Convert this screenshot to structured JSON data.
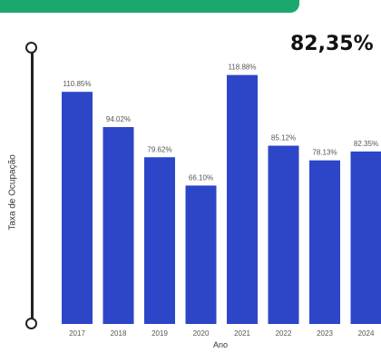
{
  "highlight_value": "82,35%",
  "chart_data": {
    "type": "bar",
    "xlabel": "Ano",
    "ylabel": "Taxa de Ocupação",
    "categories": [
      "2017",
      "2018",
      "2019",
      "2020",
      "2021",
      "2022",
      "2023",
      "2024"
    ],
    "values": [
      110.85,
      94.02,
      79.62,
      66.1,
      118.88,
      85.12,
      78.13,
      82.35
    ],
    "data_labels": [
      "110.85%",
      "94.02%",
      "79.62%",
      "66.10%",
      "118.88%",
      "85.12%",
      "78.13%",
      "82.35%"
    ],
    "ylim": [
      0,
      130
    ],
    "grid": false,
    "colors": {
      "bar": "#2d46c8",
      "banner": "#1aa86e"
    }
  }
}
